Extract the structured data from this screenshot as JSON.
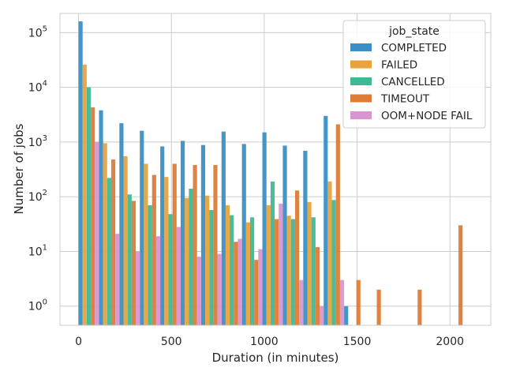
{
  "chart_data": {
    "type": "bar",
    "subtype": "histogram-grouped-log",
    "title": "",
    "xlabel": "Duration (in minutes)",
    "ylabel": "Number of jobs",
    "xlim": [
      -100,
      2220
    ],
    "ylim_log10": [
      -0.35,
      5.35
    ],
    "yscale": "log",
    "grid": true,
    "x_ticks": [
      0,
      500,
      1000,
      1500,
      2000
    ],
    "x_tick_labels": [
      "0",
      "500",
      "1000",
      "1500",
      "2000"
    ],
    "y_ticks": [
      1,
      10,
      100,
      1000,
      10000,
      100000
    ],
    "y_tick_labels": [
      {
        "base": "10",
        "exp": "0"
      },
      {
        "base": "10",
        "exp": "1"
      },
      {
        "base": "10",
        "exp": "2"
      },
      {
        "base": "10",
        "exp": "3"
      },
      {
        "base": "10",
        "exp": "4"
      },
      {
        "base": "10",
        "exp": "5"
      }
    ],
    "bin_width": 110,
    "bin_starts": [
      0,
      110,
      220,
      330,
      440,
      550,
      660,
      770,
      880,
      990,
      1100,
      1210,
      1320,
      1430,
      1540,
      1650,
      1760,
      1870,
      1980
    ],
    "legend": {
      "title": "job_state",
      "position": "top-right"
    },
    "series": [
      {
        "name": "COMPLETED",
        "color": "#3b8fc4",
        "values": [
          160000,
          3800,
          2200,
          1600,
          830,
          1050,
          880,
          1550,
          920,
          1500,
          860,
          690,
          3000,
          1,
          0,
          0,
          0,
          0,
          0
        ]
      },
      {
        "name": "FAILED",
        "color": "#e8a33d",
        "values": [
          26000,
          950,
          550,
          400,
          230,
          95,
          105,
          70,
          34,
          70,
          45,
          80,
          190,
          0,
          0,
          0,
          0,
          0,
          0
        ]
      },
      {
        "name": "CANCELLED",
        "color": "#3fb894",
        "values": [
          10000,
          220,
          110,
          70,
          48,
          140,
          57,
          46,
          42,
          190,
          39,
          42,
          87,
          0,
          0,
          0,
          0,
          0,
          0
        ]
      },
      {
        "name": "TIMEOUT",
        "color": "#dc7c37",
        "values": [
          4300,
          480,
          84,
          250,
          400,
          380,
          380,
          15,
          7,
          39,
          130,
          12,
          2100,
          3,
          2,
          0,
          2,
          0,
          30
        ]
      },
      {
        "name": "OOM+NODE FAIL",
        "color": "#d995cf",
        "values": [
          1000,
          21,
          10,
          19,
          28,
          8,
          9,
          17,
          11,
          75,
          3,
          1,
          3,
          0,
          0,
          0,
          0,
          0,
          0
        ]
      }
    ]
  }
}
